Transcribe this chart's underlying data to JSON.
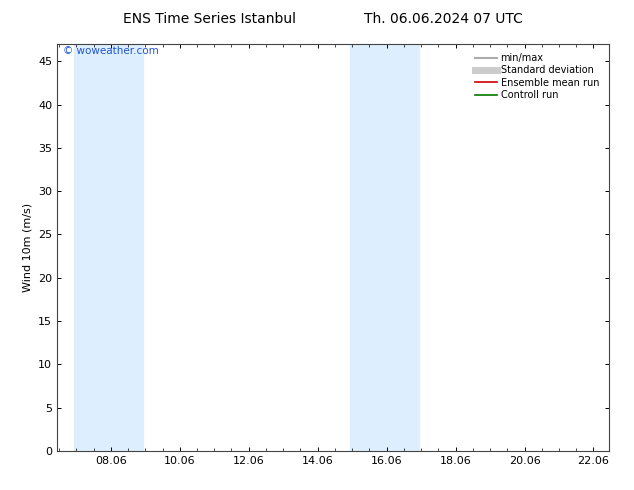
{
  "title_left": "ENS Time Series Istanbul",
  "title_right": "Th. 06.06.2024 07 UTC",
  "watermark": "© woweather.com",
  "ylabel": "Wind 10m (m/s)",
  "xlim": [
    6.5,
    22.5
  ],
  "ylim": [
    0,
    47
  ],
  "yticks": [
    0,
    5,
    10,
    15,
    20,
    25,
    30,
    35,
    40,
    45
  ],
  "xticks": [
    8.06,
    10.06,
    12.06,
    14.06,
    16.06,
    18.06,
    20.06,
    22.06
  ],
  "xtick_labels": [
    "08.06",
    "10.06",
    "12.06",
    "14.06",
    "16.06",
    "18.06",
    "20.06",
    "22.06"
  ],
  "shaded_bands": [
    {
      "xmin": 7.0,
      "xmax": 9.0
    },
    {
      "xmin": 15.0,
      "xmax": 17.0
    }
  ],
  "band_color": "#ddeeff",
  "legend_entries": [
    {
      "label": "min/max",
      "color": "#aaaaaa",
      "lw": 1.5
    },
    {
      "label": "Standard deviation",
      "color": "#cccccc",
      "lw": 5
    },
    {
      "label": "Ensemble mean run",
      "color": "#cc0000",
      "lw": 1.2
    },
    {
      "label": "Controll run",
      "color": "#007700",
      "lw": 1.2
    }
  ],
  "bg_color": "#ffffff",
  "plot_bg_color": "#ffffff",
  "title_fontsize": 10,
  "axis_fontsize": 8,
  "tick_fontsize": 8,
  "watermark_color": "#2255cc",
  "grid_color": "#dddddd",
  "spine_color": "#444444"
}
